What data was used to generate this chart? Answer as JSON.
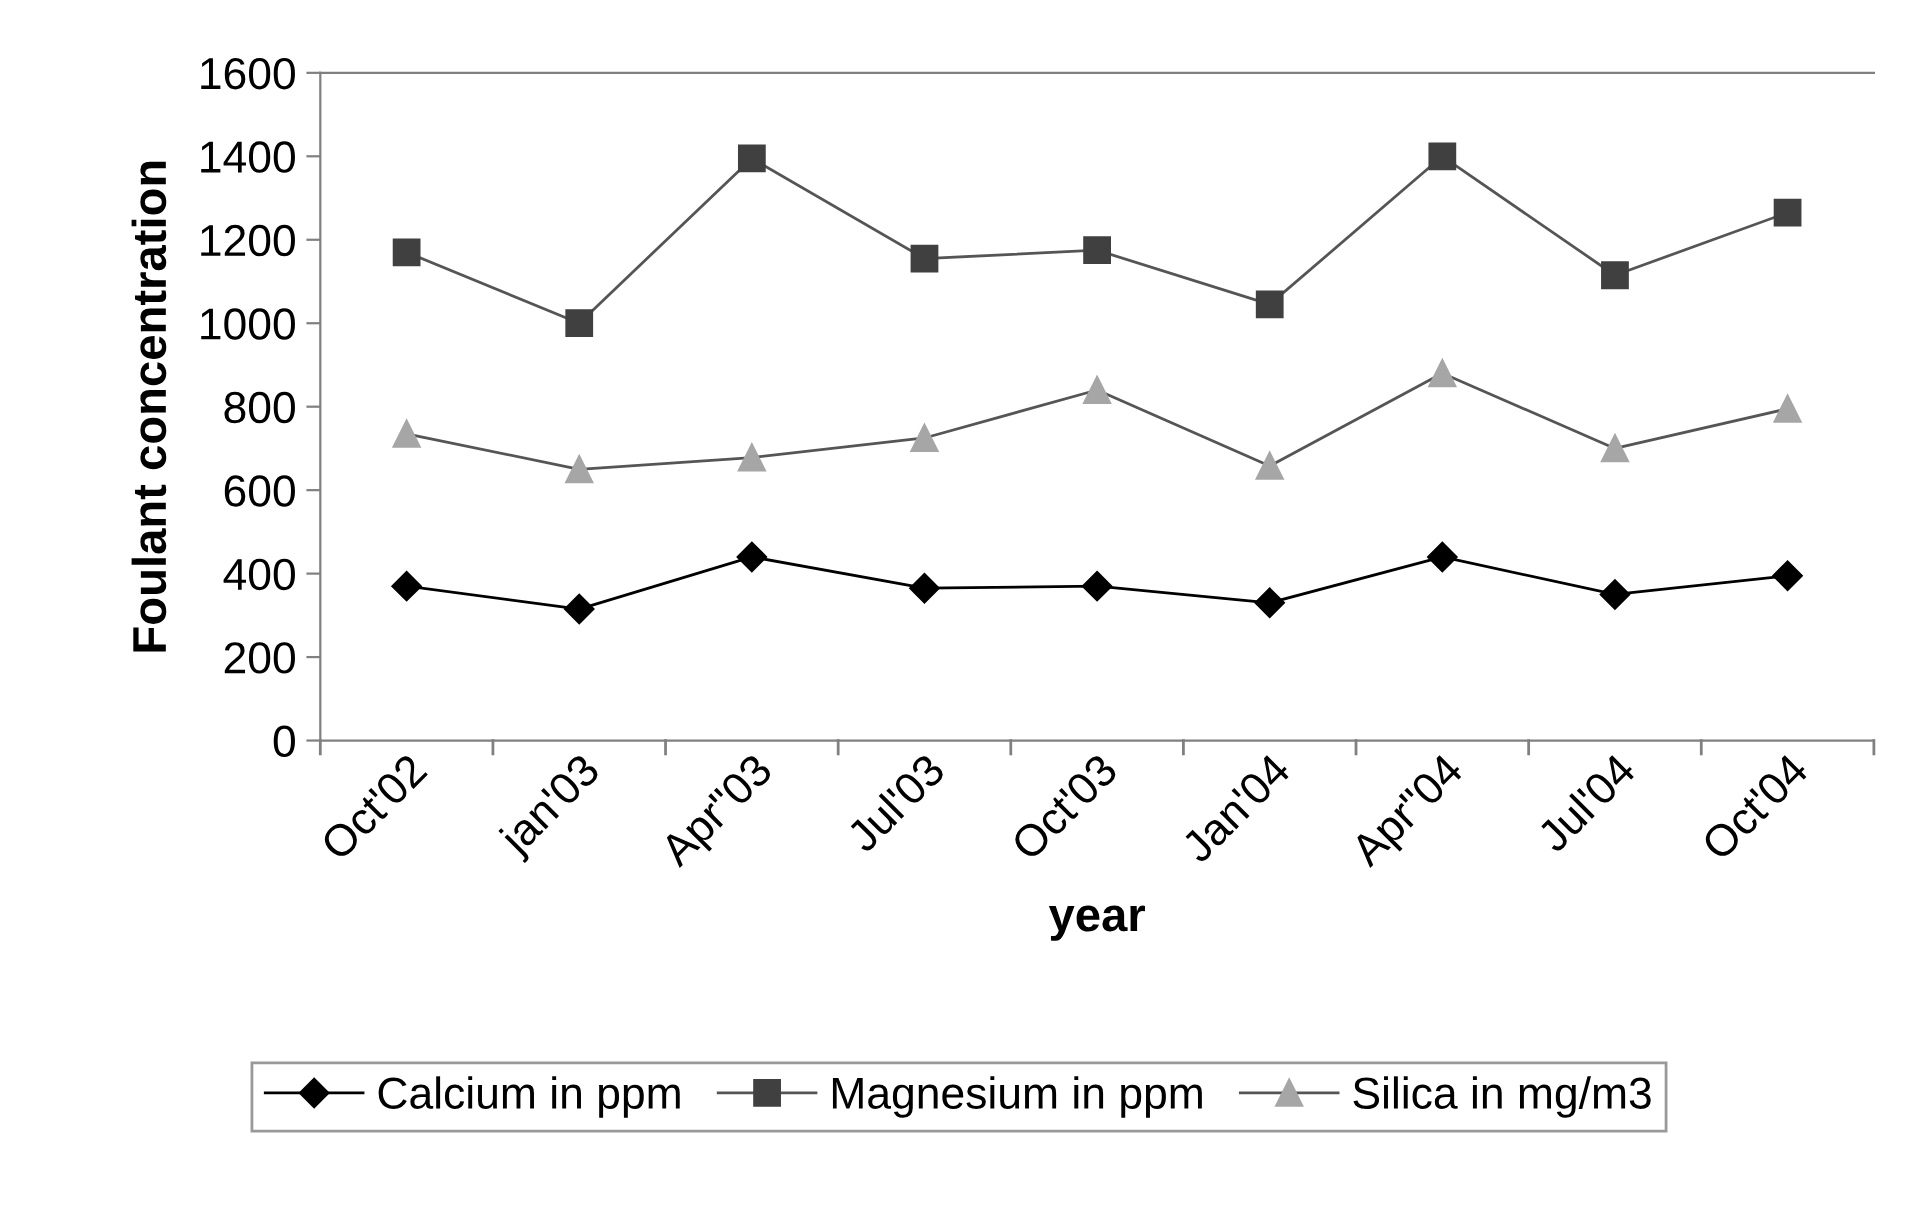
{
  "chart_data": {
    "type": "line",
    "xlabel": "year",
    "ylabel": "Foulant concentration",
    "categories": [
      "Oct'02",
      "jan'03",
      "Apr\"03",
      "Jul'03",
      "Oct'03",
      "Jan'04",
      "Apr\"04",
      "Jul'04",
      "Oct'04"
    ],
    "series": [
      {
        "name": "Calcium in ppm",
        "color": "#000000",
        "marker": "diamond",
        "values": [
          370,
          315,
          440,
          365,
          370,
          330,
          440,
          350,
          395
        ]
      },
      {
        "name": "Magnesium in ppm",
        "color": "#404040",
        "marker": "square",
        "values": [
          1170,
          1000,
          1395,
          1155,
          1175,
          1045,
          1400,
          1115,
          1265
        ]
      },
      {
        "name": "Silica in mg/m3",
        "color": "#a6a6a6",
        "marker": "triangle",
        "values": [
          735,
          650,
          678,
          725,
          840,
          658,
          880,
          700,
          795
        ]
      }
    ],
    "ylim": [
      0,
      1600
    ],
    "yticks": [
      0,
      200,
      400,
      600,
      800,
      1000,
      1200,
      1400,
      1600
    ],
    "grid": false,
    "legend": "bottom",
    "line_style": "solid"
  }
}
